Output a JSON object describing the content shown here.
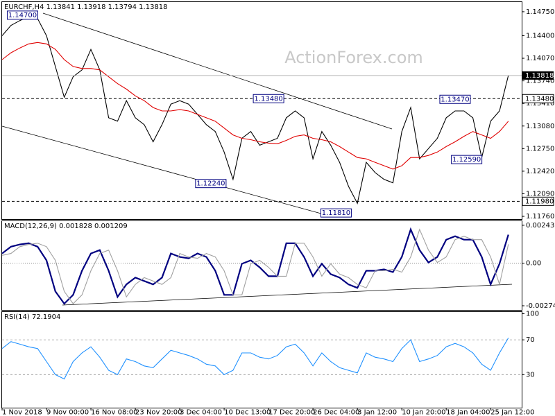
{
  "chart_data": [
    {
      "type": "line",
      "title": "EURCHF,H4  1.13841 1.13918 1.13794 1.13818",
      "watermark": "ActionForex.com",
      "xlim": [
        0,
        58.5
      ],
      "xticks": [
        {
          "value": 0,
          "label": "1 Nov 2018"
        },
        {
          "value": 5,
          "label": "9 Nov 00:00"
        },
        {
          "value": 10,
          "label": "16 Nov 08:00"
        },
        {
          "value": 15,
          "label": "23 Nov 20:00"
        },
        {
          "value": 20,
          "label": "3 Dec 04:00"
        },
        {
          "value": 25,
          "label": "10 Dec 13:00"
        },
        {
          "value": 30,
          "label": "17 Dec 20:00"
        },
        {
          "value": 35,
          "label": "26 Dec 04:00"
        },
        {
          "value": 40,
          "label": "3 Jan 12:00"
        },
        {
          "value": 45,
          "label": "10 Jan 20:00"
        },
        {
          "value": 50,
          "label": "18 Jan 04:00"
        },
        {
          "value": 55,
          "label": "25 Jan 12:00"
        }
      ],
      "ylim": [
        1.1172,
        1.14891
      ],
      "yticks": [
        {
          "value": 1.1475,
          "label": "1.14750"
        },
        {
          "value": 1.144,
          "label": "1.14400"
        },
        {
          "value": 1.1407,
          "label": "1.14070"
        },
        {
          "value": 1.1374,
          "label": "1.13740"
        },
        {
          "value": 1.1341,
          "label": "1.13410"
        },
        {
          "value": 1.1308,
          "label": "1.13080"
        },
        {
          "value": 1.1275,
          "label": "1.12750"
        },
        {
          "value": 1.1242,
          "label": "1.12420"
        },
        {
          "value": 1.1209,
          "label": "1.12090"
        },
        {
          "value": 1.1176,
          "label": "1.11760"
        }
      ],
      "current_price": 1.13818,
      "levels": [
        {
          "value": 1.1348,
          "label": "1.13480"
        },
        {
          "value": 1.1198,
          "label": "1.11980"
        }
      ],
      "annotations": [
        {
          "x": 2.3,
          "value": 1.147,
          "label": "1.14700"
        },
        {
          "x": 30,
          "value": 1.1348,
          "label": "1.13480"
        },
        {
          "x": 51,
          "value": 1.1347,
          "label": "1.13470"
        },
        {
          "x": 23.5,
          "value": 1.1224,
          "label": "1.12240"
        },
        {
          "x": 52.3,
          "value": 1.1259,
          "label": "1.12590"
        },
        {
          "x": 37.6,
          "value": 1.1181,
          "label": "1.11810"
        }
      ],
      "series": [
        {
          "color": "#000000",
          "values": [
            1.144,
            1.1455,
            1.1462,
            1.1468,
            1.1465,
            1.144,
            1.1395,
            1.135,
            1.138,
            1.139,
            1.142,
            1.139,
            1.132,
            1.1315,
            1.1345,
            1.132,
            1.131,
            1.1285,
            1.131,
            1.134,
            1.1345,
            1.134,
            1.1325,
            1.131,
            1.13,
            1.127,
            1.123,
            1.129,
            1.13,
            1.128,
            1.1285,
            1.129,
            1.132,
            1.133,
            1.132,
            1.126,
            1.13,
            1.128,
            1.1255,
            1.122,
            1.1195,
            1.1255,
            1.124,
            1.123,
            1.1225,
            1.13,
            1.1335,
            1.126,
            1.1275,
            1.129,
            1.132,
            1.133,
            1.133,
            1.132,
            1.1262,
            1.1315,
            1.133,
            1.1382
          ]
        },
        {
          "color": "#e00000",
          "values": [
            1.1405,
            1.1415,
            1.1422,
            1.1428,
            1.143,
            1.1428,
            1.142,
            1.1405,
            1.1395,
            1.1392,
            1.1392,
            1.139,
            1.138,
            1.137,
            1.1362,
            1.1352,
            1.1345,
            1.1335,
            1.133,
            1.133,
            1.1332,
            1.133,
            1.1325,
            1.132,
            1.1315,
            1.1305,
            1.1295,
            1.129,
            1.1288,
            1.1285,
            1.1283,
            1.1282,
            1.1287,
            1.1293,
            1.1295,
            1.129,
            1.1288,
            1.1285,
            1.1278,
            1.127,
            1.1262,
            1.126,
            1.1255,
            1.125,
            1.1245,
            1.125,
            1.1262,
            1.1262,
            1.1265,
            1.127,
            1.1278,
            1.1285,
            1.1293,
            1.13,
            1.1295,
            1.129,
            1.13,
            1.1315
          ]
        }
      ]
    },
    {
      "type": "line",
      "title": "MACD(12,26,9) 0.001828 0.001209",
      "xlim": [
        0,
        58.5
      ],
      "ylim": [
        -0.00301,
        0.0027
      ],
      "yticks": [
        0.002436,
        {
          "value": 0,
          "label": "0.00"
        },
        -0.002742
      ],
      "series": [
        {
          "color": "#000080",
          "values": [
            0.00062,
            0.00106,
            0.0012,
            0.00128,
            0.00106,
            0.00018,
            -0.00182,
            -0.00261,
            -0.00204,
            -0.00049,
            0.00062,
            0.00084,
            -0.00049,
            -0.00217,
            -0.00137,
            -0.00093,
            -0.00115,
            -0.00137,
            -0.00093,
            0.00062,
            0.0004,
            0.00031,
            0.00062,
            0.0004,
            -0.00049,
            -0.00204,
            -0.00204,
            -4e-05,
            0.00018,
            -0.00027,
            -0.00084,
            -0.00084,
            0.00128,
            0.00128,
            0.0004,
            -0.00084,
            -4e-05,
            -0.00071,
            -0.00093,
            -0.00137,
            -0.00159,
            -0.00049,
            -0.00049,
            -0.0004,
            -0.00058,
            0.0004,
            0.00217,
            0.00084,
            4e-05,
            0.0004,
            0.00151,
            0.00173,
            0.00151,
            0.00151,
            0.0004,
            -0.00137,
            -4e-05,
            0.00183
          ]
        },
        {
          "color": "#a0a0a0",
          "values": [
            0.0005,
            0.00062,
            0.00106,
            0.0012,
            0.00128,
            0.00106,
            0.00018,
            -0.00182,
            -0.00261,
            -0.00204,
            -0.00049,
            0.00062,
            0.00084,
            -0.00049,
            -0.00217,
            -0.00137,
            -0.00093,
            -0.00115,
            -0.00137,
            -0.00093,
            0.00062,
            0.0004,
            0.00031,
            0.00062,
            0.0004,
            -0.00049,
            -0.00204,
            -0.00204,
            -4e-05,
            0.00018,
            -0.00027,
            -0.00084,
            -0.00084,
            0.00128,
            0.00128,
            0.0004,
            -0.00084,
            -4e-05,
            -0.00071,
            -0.00093,
            -0.00137,
            -0.00159,
            -0.00049,
            -0.00049,
            -0.0004,
            -0.00058,
            0.0004,
            0.00217,
            0.00084,
            4e-05,
            0.0004,
            0.00151,
            0.00173,
            0.00151,
            0.00151,
            0.0004,
            -0.00137,
            0.00121
          ]
        }
      ]
    },
    {
      "type": "line",
      "title": "RSI(14) 72.1904",
      "xlim": [
        0,
        58.5
      ],
      "ylim": [
        -8,
        102
      ],
      "yticks": [
        100,
        70,
        30
      ],
      "levels": [
        70,
        30
      ],
      "series": [
        {
          "color": "#1e90ff",
          "values": [
            60,
            68,
            65,
            62,
            60,
            45,
            30,
            25,
            45,
            55,
            62,
            50,
            35,
            30,
            48,
            45,
            40,
            38,
            48,
            58,
            55,
            52,
            48,
            42,
            40,
            30,
            35,
            55,
            55,
            50,
            48,
            52,
            62,
            65,
            55,
            40,
            55,
            45,
            38,
            35,
            32,
            55,
            50,
            48,
            45,
            60,
            70,
            45,
            48,
            52,
            62,
            66,
            62,
            55,
            42,
            35,
            55,
            72.19
          ]
        }
      ]
    }
  ]
}
